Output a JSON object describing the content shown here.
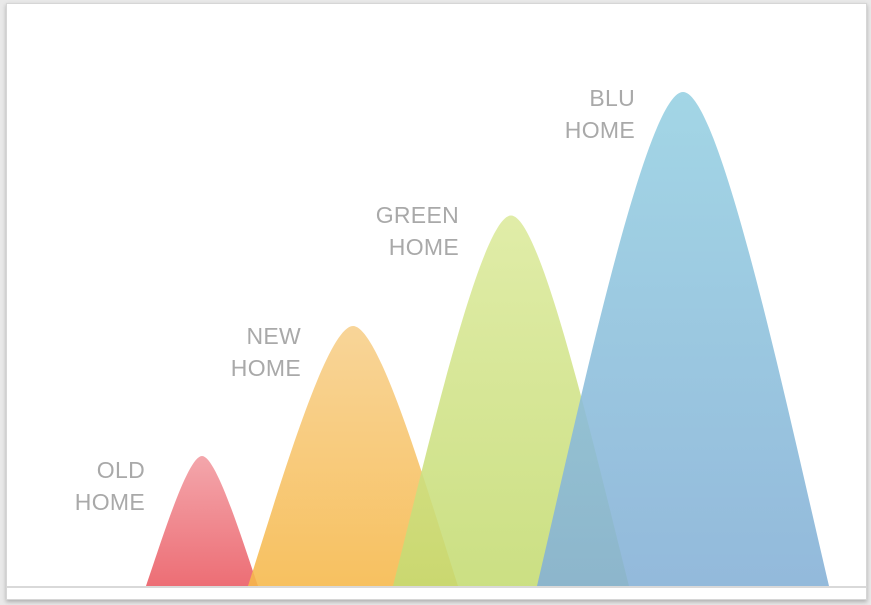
{
  "chart_data": {
    "type": "area",
    "title": "",
    "xlabel": "",
    "ylabel": "",
    "grid": false,
    "legend": "none",
    "series": [
      {
        "name": "OLD HOME",
        "label_lines": [
          "OLD",
          "HOME"
        ],
        "peak": 1.0,
        "color": "#ef7f85"
      },
      {
        "name": "NEW HOME",
        "label_lines": [
          "NEW",
          "HOME"
        ],
        "peak": 2.0,
        "color": "#f7c265"
      },
      {
        "name": "GREEN HOME",
        "label_lines": [
          "GREEN",
          "HOME"
        ],
        "peak": 2.85,
        "color": "#cfe084"
      },
      {
        "name": "BLU HOME",
        "label_lines": [
          "BLU",
          "HOME"
        ],
        "peak": 3.8,
        "color": "#8fbfdc"
      }
    ]
  }
}
